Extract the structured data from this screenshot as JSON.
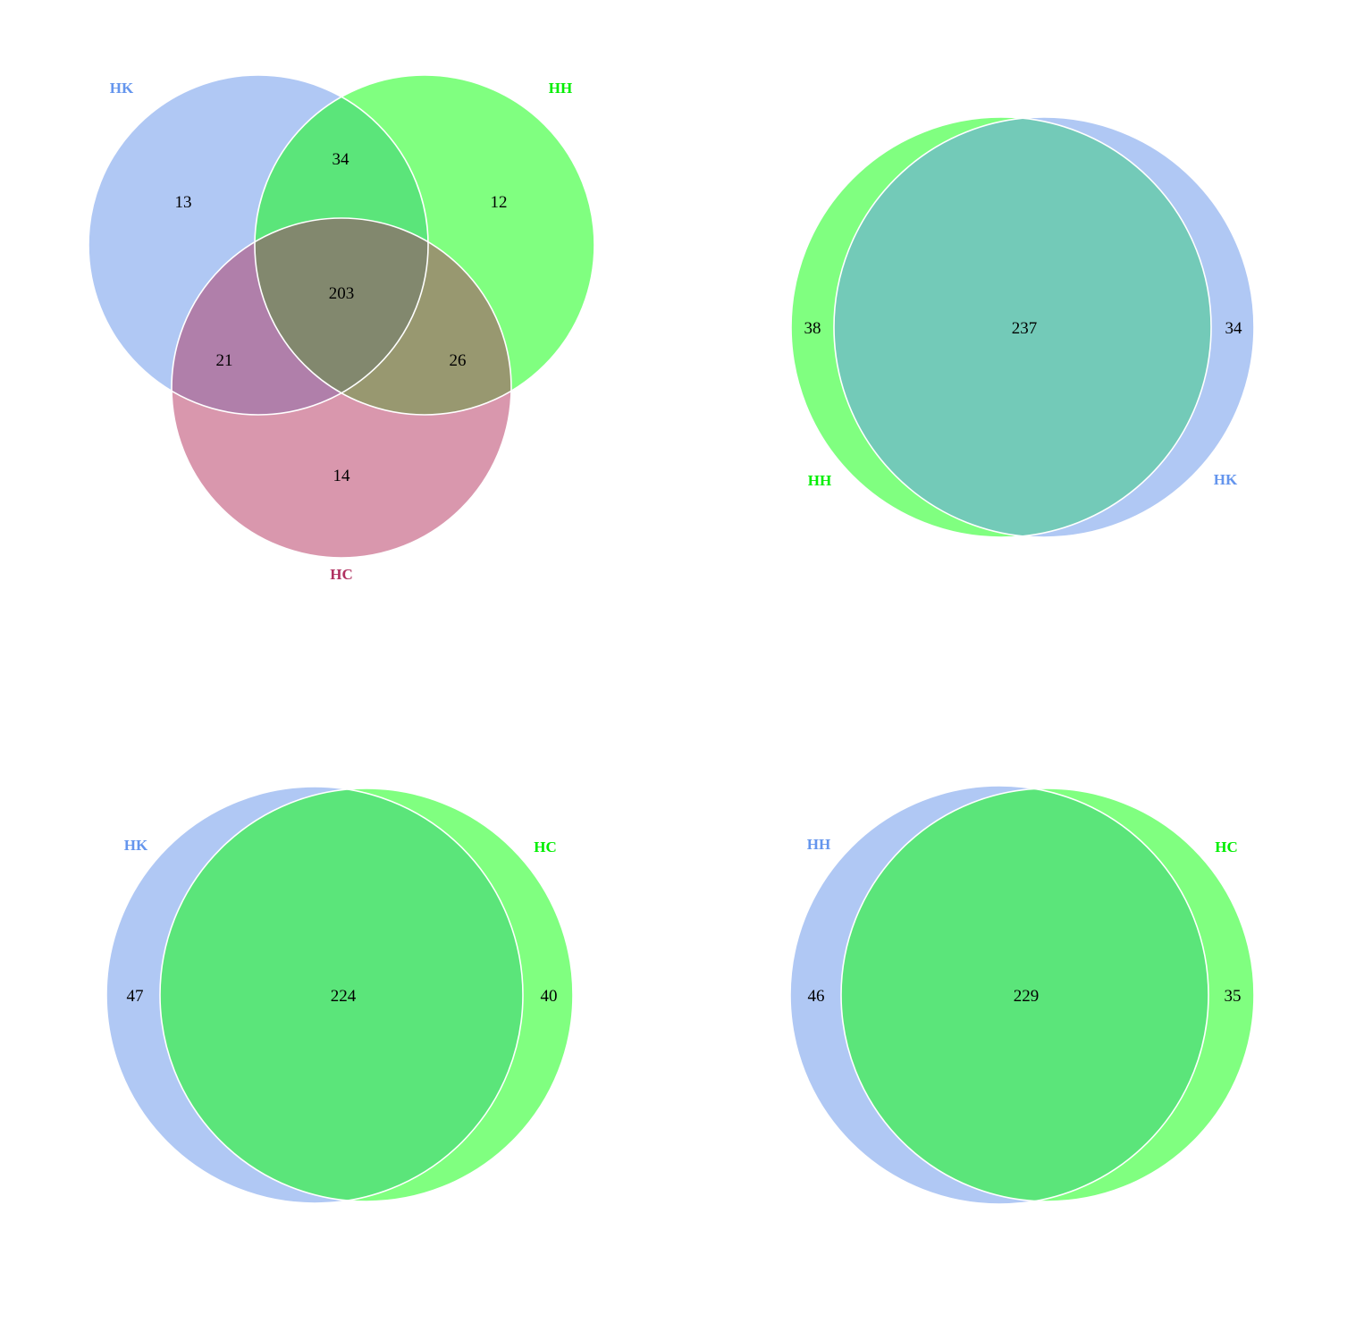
{
  "colors": {
    "blue_fill": "#b0c8f4",
    "green_fill": "#80ff80",
    "pink_fill": "#d997ad",
    "label_blue": "#6495ed",
    "label_green": "#00ee00",
    "label_maroon": "#b03060",
    "overlap_teal": "#73cab8",
    "overlap_green": "#5be57a",
    "overlap_ab": "#5be57a",
    "overlap_ac": "#b07faa",
    "overlap_bc": "#989870",
    "overlap_abc": "#82886e"
  },
  "venn_top_left": {
    "sets": [
      {
        "label": "HK",
        "color": "#6495ed"
      },
      {
        "label": "HH",
        "color": "#00ee00"
      },
      {
        "label": "HC",
        "color": "#b03060"
      }
    ],
    "counts": {
      "only_a": "13",
      "only_b": "12",
      "only_c": "14",
      "ab": "34",
      "ac": "21",
      "bc": "26",
      "abc": "203"
    }
  },
  "venn_top_right": {
    "sets": [
      {
        "label": "HH",
        "color": "#00ee00"
      },
      {
        "label": "HK",
        "color": "#6495ed"
      }
    ],
    "counts": {
      "left_only": "38",
      "both": "237",
      "right_only": "34"
    }
  },
  "venn_bottom_left": {
    "sets": [
      {
        "label": "HK",
        "color": "#6495ed"
      },
      {
        "label": "HC",
        "color": "#00ee00"
      }
    ],
    "counts": {
      "left_only": "47",
      "both": "224",
      "right_only": "40"
    }
  },
  "venn_bottom_right": {
    "sets": [
      {
        "label": "HH",
        "color": "#6495ed"
      },
      {
        "label": "HC",
        "color": "#00ee00"
      }
    ],
    "counts": {
      "left_only": "46",
      "both": "229",
      "right_only": "35"
    }
  }
}
